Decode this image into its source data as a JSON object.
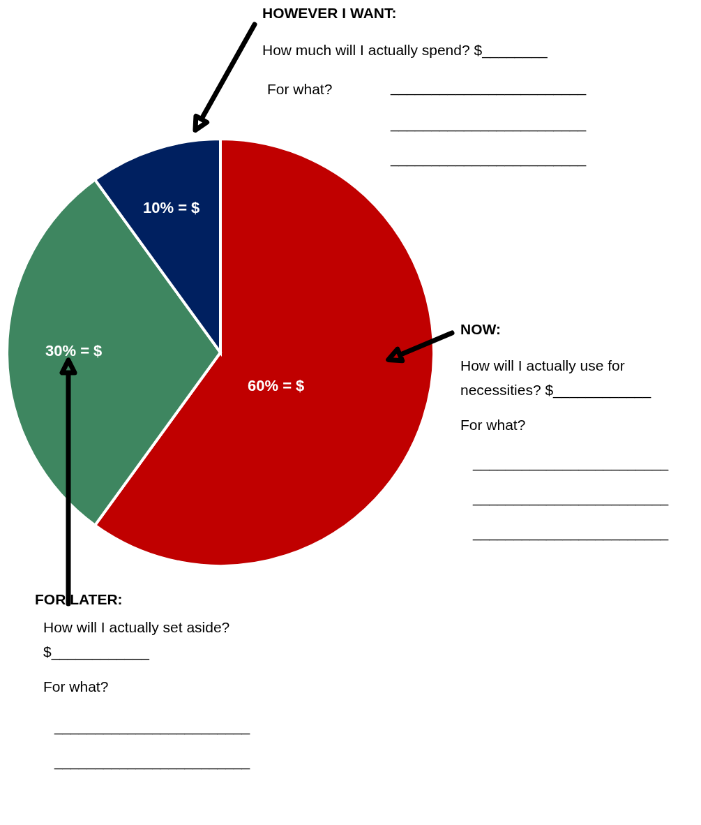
{
  "chart_data": {
    "type": "pie",
    "categories": [
      null,
      null,
      null
    ],
    "values": [
      60,
      30,
      10
    ],
    "colors": [
      "#c00000",
      "#3e8660",
      "#002060"
    ],
    "value_labels": [
      "60% = $",
      "30% =  $",
      "10% = $"
    ],
    "annotations": [
      "HOWEVER I WANT:",
      "How much will I actually spend? $________",
      "For what?",
      "________________________",
      "________________________",
      "________________________",
      "NOW:",
      "How will I actually use for",
      "necessities? $____________",
      "For what?",
      "________________________",
      "________________________",
      "________________________",
      "FOR LATER:",
      "How will I actually set aside?",
      "$____________",
      "For what?",
      "________________________",
      "________________________"
    ]
  }
}
